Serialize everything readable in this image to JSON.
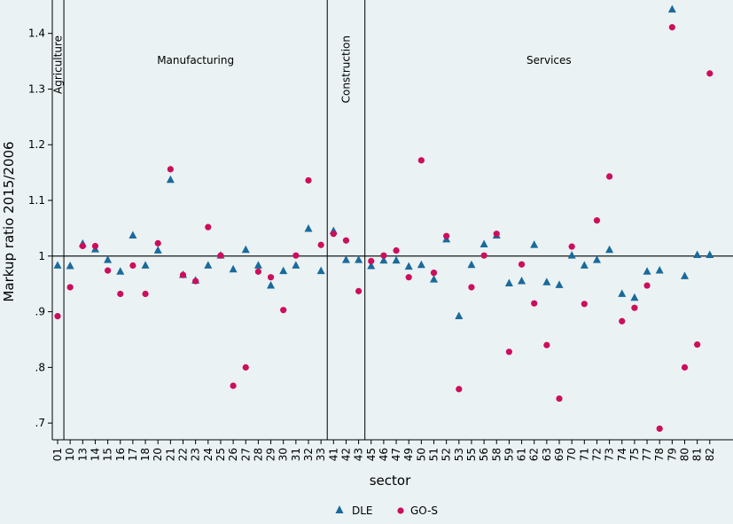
{
  "chart_data": {
    "type": "scatter",
    "xlabel": "sector",
    "ylabel": "Markup ratio 2015/2006",
    "ylim": [
      0.67,
      1.46
    ],
    "yticks": [
      {
        "v": 0.7,
        "label": ".7"
      },
      {
        "v": 0.8,
        "label": ".8"
      },
      {
        "v": 0.9,
        "label": ".9"
      },
      {
        "v": 1.0,
        "label": "1"
      },
      {
        "v": 1.1,
        "label": "1.1"
      },
      {
        "v": 1.2,
        "label": "1.2"
      },
      {
        "v": 1.3,
        "label": "1.3"
      },
      {
        "v": 1.4,
        "label": "1.4"
      }
    ],
    "reference_line": 1.0,
    "grid": false,
    "legend_position": "bottom",
    "categories": [
      "01",
      "10",
      "13",
      "14",
      "15",
      "16",
      "17",
      "18",
      "20",
      "21",
      "22",
      "23",
      "24",
      "25",
      "26",
      "27",
      "28",
      "29",
      "30",
      "31",
      "32",
      "33",
      "41",
      "42",
      "43",
      "45",
      "46",
      "47",
      "49",
      "50",
      "51",
      "52",
      "53",
      "55",
      "56",
      "58",
      "59",
      "61",
      "62",
      "63",
      "69",
      "70",
      "71",
      "72",
      "73",
      "74",
      "75",
      "77",
      "78",
      "79",
      "80",
      "81",
      "82"
    ],
    "regions": [
      {
        "label": "Agriculture",
        "after": "01"
      },
      {
        "label": "Manufacturing",
        "after": "33"
      },
      {
        "label": "Construction",
        "after": "43"
      },
      {
        "label": "Services",
        "after": null
      }
    ],
    "series": [
      {
        "name": "DLE",
        "marker": "triangle",
        "color": "#1a6a9b",
        "values": [
          0.983,
          0.982,
          1.022,
          1.012,
          0.993,
          0.972,
          1.037,
          0.983,
          1.01,
          1.137,
          0.966,
          0.956,
          0.983,
          1.001,
          0.976,
          1.011,
          0.983,
          0.947,
          0.973,
          0.983,
          1.049,
          0.973,
          1.045,
          0.993,
          0.993,
          0.982,
          0.992,
          0.992,
          0.981,
          0.984,
          0.958,
          1.03,
          0.892,
          0.984,
          1.021,
          1.037,
          0.951,
          0.955,
          1.02,
          0.953,
          0.948,
          1.001,
          0.983,
          0.993,
          1.011,
          0.932,
          0.925,
          0.972,
          0.974,
          1.443,
          0.964,
          1.002,
          1.002
        ]
      },
      {
        "name": "GO-S",
        "marker": "circle",
        "color": "#cc0e5c",
        "values": [
          0.892,
          0.944,
          1.018,
          1.018,
          0.974,
          0.932,
          0.983,
          0.932,
          1.023,
          1.156,
          0.966,
          0.955,
          1.052,
          1.001,
          0.767,
          0.8,
          0.972,
          0.962,
          0.903,
          1.001,
          1.136,
          1.02,
          1.04,
          1.028,
          0.937,
          0.991,
          1.001,
          1.01,
          0.962,
          1.172,
          0.97,
          1.036,
          0.761,
          0.944,
          1.001,
          1.04,
          0.828,
          0.985,
          0.915,
          0.84,
          0.744,
          1.017,
          0.914,
          1.064,
          1.143,
          0.883,
          0.907,
          0.947,
          0.69,
          1.411,
          0.8,
          0.841,
          1.328
        ]
      }
    ]
  }
}
